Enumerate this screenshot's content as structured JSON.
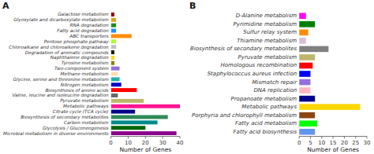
{
  "chart_data": [
    {
      "type": "bar",
      "orientation": "horizontal",
      "title": "A",
      "x_label": "Number of Genes",
      "categories": [
        "Galactose metabolism",
        "Glyoxylate and dicarboxylate metabolism",
        "RNA degradation",
        "Fatty acid degradation",
        "ABC transporters",
        "Pentose phosphate pathway",
        "Chloroalkane and chloroalkene degradation",
        "Degradation of aromatic compounds",
        "Naphthalene degradation",
        "Tyrosine metabolism",
        "Two-component system",
        "Methane metabolism",
        "Glycine, serine and threonine metabolism",
        "Nitrogen metabolism",
        "Biosynthesis of amino acids",
        "Valine, leucine and isoleucine degradation",
        "Pyruvate metabolism",
        "Metabolic pathways",
        "Citrate cycle (TCA cycle)",
        "Biosynthesis of secondary metabolites",
        "Carbon metabolism",
        "Glycolysis / Gluconeogenesis",
        "Microbial metabolism in diverse environments"
      ],
      "values": [
        2,
        3,
        3,
        3,
        12,
        3,
        3,
        2,
        2,
        2,
        5,
        4,
        5,
        6,
        15,
        4,
        19,
        40,
        14,
        33,
        27,
        20,
        38
      ],
      "colors": [
        "#8B0000",
        "#DAA520",
        "#228B22",
        "#1E90FF",
        "#FF8C00",
        "#ADFF2F",
        "#C0C0C0",
        "#1a1a00",
        "#FFD700",
        "#8B8000",
        "#9370DB",
        "#FFDEAD",
        "#20B2AA",
        "#0000CD",
        "#FF0000",
        "#696969",
        "#BDB76B",
        "#FF1493",
        "#00008B",
        "#2E8B57",
        "#008B8B",
        "#006400",
        "#8B008B"
      ],
      "xlim": [
        0,
        40
      ],
      "xticks": [
        0,
        10,
        20,
        30,
        40
      ],
      "grid": false
    },
    {
      "type": "bar",
      "orientation": "horizontal",
      "title": "B",
      "x_label": "Number of Genes",
      "categories": [
        "D-Alanine metabolism",
        "Pyrimidine metabolism",
        "Sulfur relay system",
        "Thiamine metabolism",
        "Biosynthesis of secondary metabolites",
        "Pyruvate metabolism",
        "Homologous recombination",
        "Staphylococcus aureus infection",
        "Mismatch repair",
        "DNA replication",
        "Propanoate metabolism",
        "Metabolic pathways",
        "Porphyria and chlorophyll metabolism",
        "Fatty acid metabolism",
        "Fatty acid biosynthesis"
      ],
      "values": [
        3,
        7,
        4,
        3,
        13,
        7,
        6,
        5,
        5,
        5,
        7,
        27,
        7,
        8,
        7
      ],
      "colors": [
        "#FF00FF",
        "#008000",
        "#FF8C00",
        "#D8BFD8",
        "#808080",
        "#BDB76B",
        "#FF0000",
        "#0000FF",
        "#9370DB",
        "#FFB6C1",
        "#00008B",
        "#FFD700",
        "#8B4513",
        "#00FF00",
        "#6495ED"
      ],
      "xlim": [
        0,
        30
      ],
      "xticks": [
        0,
        5,
        10,
        15,
        20,
        25,
        30
      ],
      "grid": false
    }
  ]
}
